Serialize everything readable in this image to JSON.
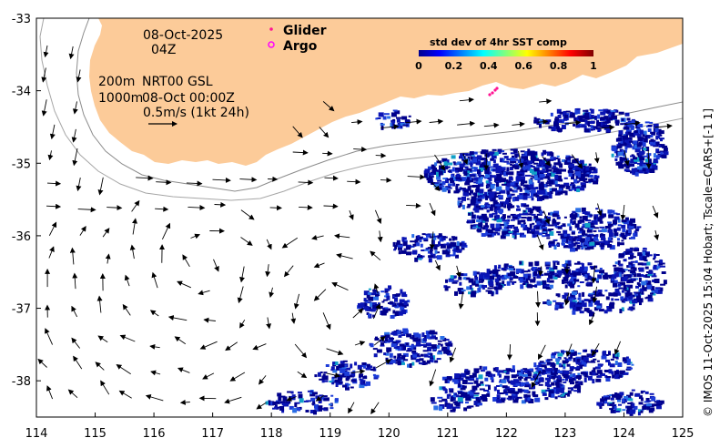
{
  "map": {
    "lon_range": [
      114,
      125
    ],
    "lat_range": [
      -38.5,
      -33
    ],
    "x_ticks": [
      "114",
      "115",
      "116",
      "117",
      "118",
      "119",
      "120",
      "121",
      "122",
      "123",
      "124",
      "125"
    ],
    "y_ticks": [
      "-33",
      "-34",
      "-35",
      "-36",
      "-37",
      "-38"
    ],
    "land_color": "#fccb99",
    "sst_colors": [
      "#00008c",
      "#0a14b4",
      "#1c3cd8",
      "#2a6ee6",
      "#11a0c8"
    ]
  },
  "annotations": {
    "date": "08-Oct-2025",
    "time": "04Z",
    "depth_200": "200m",
    "depth_1000": "1000m",
    "product": "NRT00 GSL",
    "valid": "08-Oct 00:00Z",
    "scale": "0.5m/s (1kt 24h)"
  },
  "legend": {
    "glider_label": "Glider",
    "argo_label": "Argo",
    "glider_color": "#ff1493",
    "argo_color": "#ff00ff"
  },
  "colorbar": {
    "title": "std dev of 4hr SST comp",
    "ticks": [
      "0",
      "0.2",
      "0.4",
      "0.6",
      "0.8",
      "1"
    ]
  },
  "credit": "© IMOS 11-Oct-2025 15:04 Hobart; Tscale=CARS+[-1 1]"
}
